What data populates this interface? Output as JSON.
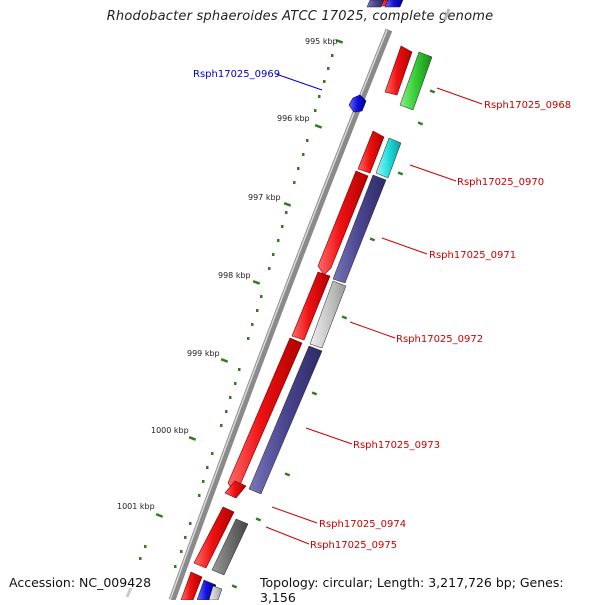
{
  "title": "Rhodobacter sphaeroides ATCC 17025, complete genome",
  "footer": {
    "accession": "Accession: NC_009428",
    "topology": "Topology: circular; Length: 3,217,726 bp; Genes: 3,156"
  },
  "colors": {
    "backbone": "#8a8a8a",
    "tick": "#2e7d1f",
    "forward": "#ee1111",
    "cds_blue": "#1010dd",
    "cds_navy": "#4a4590",
    "cds_green": "#33cc33",
    "cds_cyan": "#22dddd",
    "cds_lightgray": "#c8c8c8",
    "cds_darkgray": "#6e6e6e",
    "label_red": "#cc0000",
    "label_blue": "#0000cc"
  },
  "kbp_labels": [
    "995 kbp",
    "996 kbp",
    "997 kbp",
    "998 kbp",
    "999 kbp",
    "1000 kbp",
    "1001 kbp"
  ],
  "gene_labels": [
    {
      "name": "Rsph17025_0969",
      "color": "blue"
    },
    {
      "name": "Rsph17025_0968",
      "color": "red"
    },
    {
      "name": "Rsph17025_0970",
      "color": "red"
    },
    {
      "name": "Rsph17025_0971",
      "color": "red"
    },
    {
      "name": "Rsph17025_0972",
      "color": "red"
    },
    {
      "name": "Rsph17025_0973",
      "color": "red"
    },
    {
      "name": "Rsph17025_0974",
      "color": "red"
    },
    {
      "name": "Rsph17025_0975",
      "color": "red"
    }
  ]
}
